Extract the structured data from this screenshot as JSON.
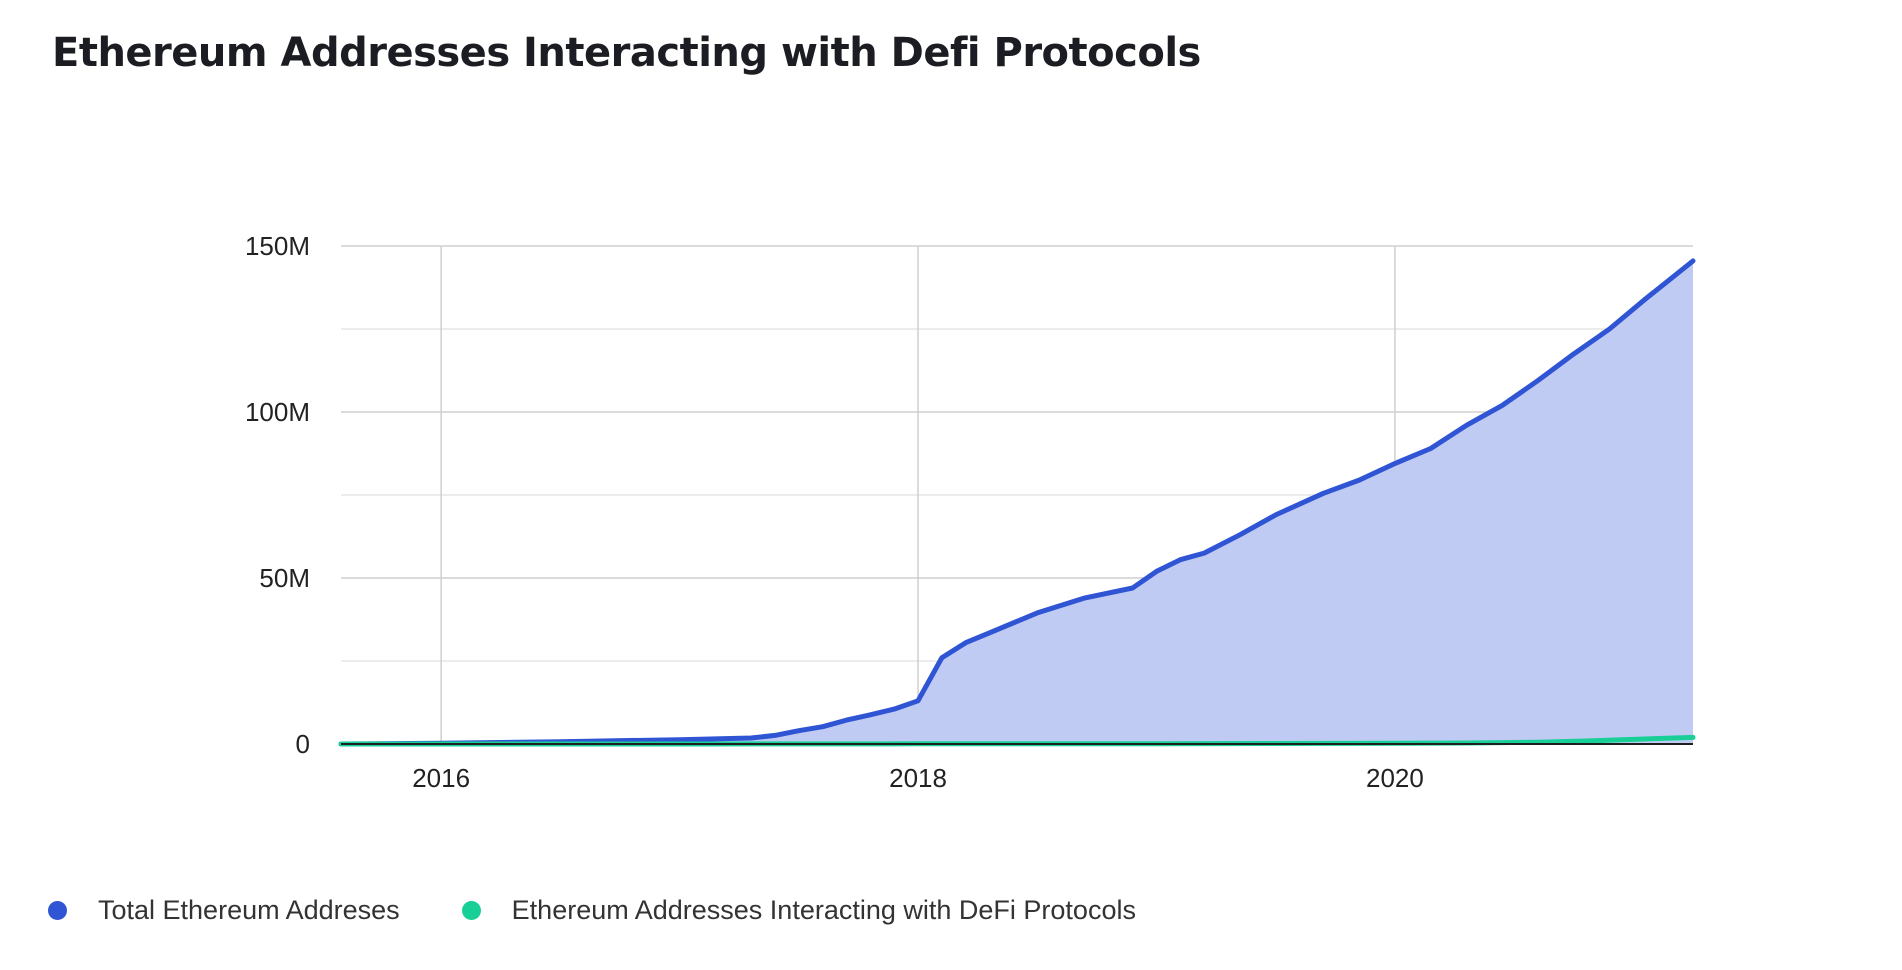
{
  "title": "Ethereum Addresses Interacting with Defi Protocols",
  "colors": {
    "total_line": "#2f55d4",
    "total_area": "#c0cbf4",
    "defi_line": "#17cf97",
    "grid": "#cfcfcf",
    "tick_label": "#222222"
  },
  "legend": [
    {
      "label": "Total Ethereum Addreses",
      "color": "#2f55d4"
    },
    {
      "label": "Ethereum Addresses Interacting with DeFi Protocols",
      "color": "#17cf97"
    }
  ],
  "chart_data": {
    "type": "area",
    "title": "Ethereum Addresses Interacting with Defi Protocols",
    "xlabel": "",
    "ylabel": "",
    "xlim": [
      2015.58,
      2021.25
    ],
    "ylim": [
      0,
      150000000
    ],
    "x_ticks": [
      2016,
      2018,
      2020
    ],
    "x_tick_labels": [
      "2016",
      "2018",
      "2020"
    ],
    "y_ticks": [
      0,
      50000000,
      100000000,
      150000000
    ],
    "y_tick_labels": [
      "0",
      "50M",
      "100M",
      "150M"
    ],
    "grid": true,
    "legend_position": "bottom",
    "series": [
      {
        "name": "Total Ethereum Addreses",
        "style": "area",
        "x": [
          2015.58,
          2016.0,
          2016.5,
          2017.0,
          2017.3,
          2017.4,
          2017.5,
          2017.6,
          2017.7,
          2017.8,
          2017.9,
          2018.0,
          2018.1,
          2018.2,
          2018.3,
          2018.5,
          2018.7,
          2018.9,
          2019.0,
          2019.1,
          2019.2,
          2019.35,
          2019.5,
          2019.7,
          2019.85,
          2020.0,
          2020.15,
          2020.3,
          2020.45,
          2020.6,
          2020.75,
          2020.9,
          2021.05,
          2021.25
        ],
        "values": [
          0,
          200000,
          700000,
          1300000,
          1800000,
          2600000,
          4000000,
          5200000,
          7200000,
          8800000,
          10500000,
          13000000,
          26000000,
          30500000,
          33500000,
          39500000,
          44000000,
          47000000,
          52000000,
          55500000,
          57500000,
          63000000,
          69000000,
          75500000,
          79500000,
          84500000,
          89000000,
          96000000,
          102000000,
          109500000,
          117500000,
          125000000,
          134000000,
          145500000
        ]
      },
      {
        "name": "Ethereum Addresses Interacting with DeFi Protocols",
        "style": "line",
        "x": [
          2015.58,
          2016.0,
          2017.0,
          2018.0,
          2019.0,
          2020.0,
          2020.3,
          2020.6,
          2020.8,
          2021.0,
          2021.25
        ],
        "values": [
          0,
          0,
          0,
          50000,
          100000,
          200000,
          300000,
          500000,
          900000,
          1400000,
          2000000
        ]
      }
    ]
  }
}
